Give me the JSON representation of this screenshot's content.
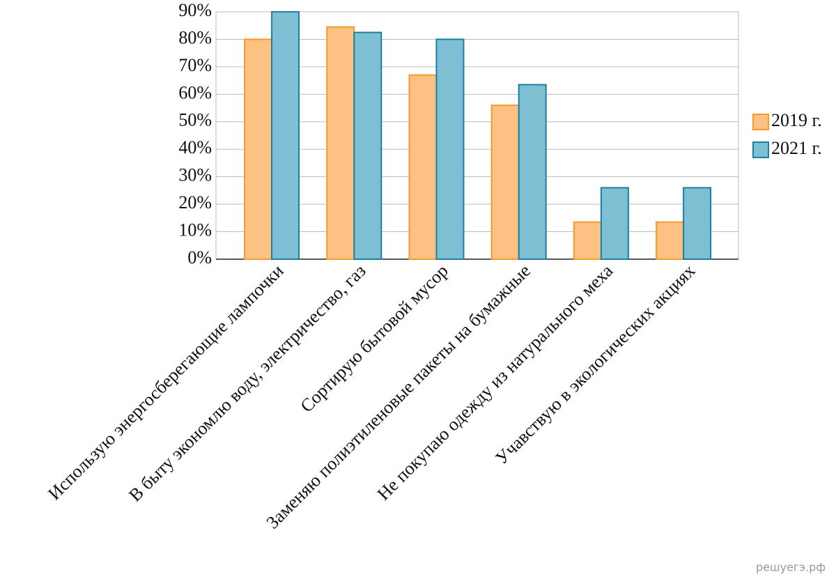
{
  "chart_data": {
    "type": "bar",
    "categories": [
      "Использую энергосберегающие лампочки",
      "В быту экономлю воду, электричество, газ",
      "Сортирую бытовой мусор",
      "Заменяю полиэтиленовые пакеты на бумажные",
      "Не покупаю одежду из натурального меха",
      "Учавствую в экологических акциях"
    ],
    "series": [
      {
        "name": "2019 г.",
        "color": "#fdc283",
        "stroke": "#f39a2c",
        "values": [
          80,
          84.5,
          67,
          56,
          13.5,
          13.5
        ]
      },
      {
        "name": "2021 г.",
        "color": "#7fbfd4",
        "stroke": "#1a7fa0",
        "values": [
          90,
          82.5,
          80,
          63.5,
          26,
          26
        ]
      }
    ],
    "ylim": [
      0,
      90
    ],
    "yticks": [
      {
        "value": 0,
        "label": "0%"
      },
      {
        "value": 10,
        "label": "10%"
      },
      {
        "value": 20,
        "label": "20%"
      },
      {
        "value": 30,
        "label": "30%"
      },
      {
        "value": 40,
        "label": "40%"
      },
      {
        "value": 50,
        "label": "50%"
      },
      {
        "value": 60,
        "label": "60%"
      },
      {
        "value": 70,
        "label": "70%"
      },
      {
        "value": 80,
        "label": "80%"
      },
      {
        "value": 90,
        "label": "90%"
      }
    ],
    "grid": true,
    "legend": "right"
  },
  "watermark": "решуегэ.рф"
}
